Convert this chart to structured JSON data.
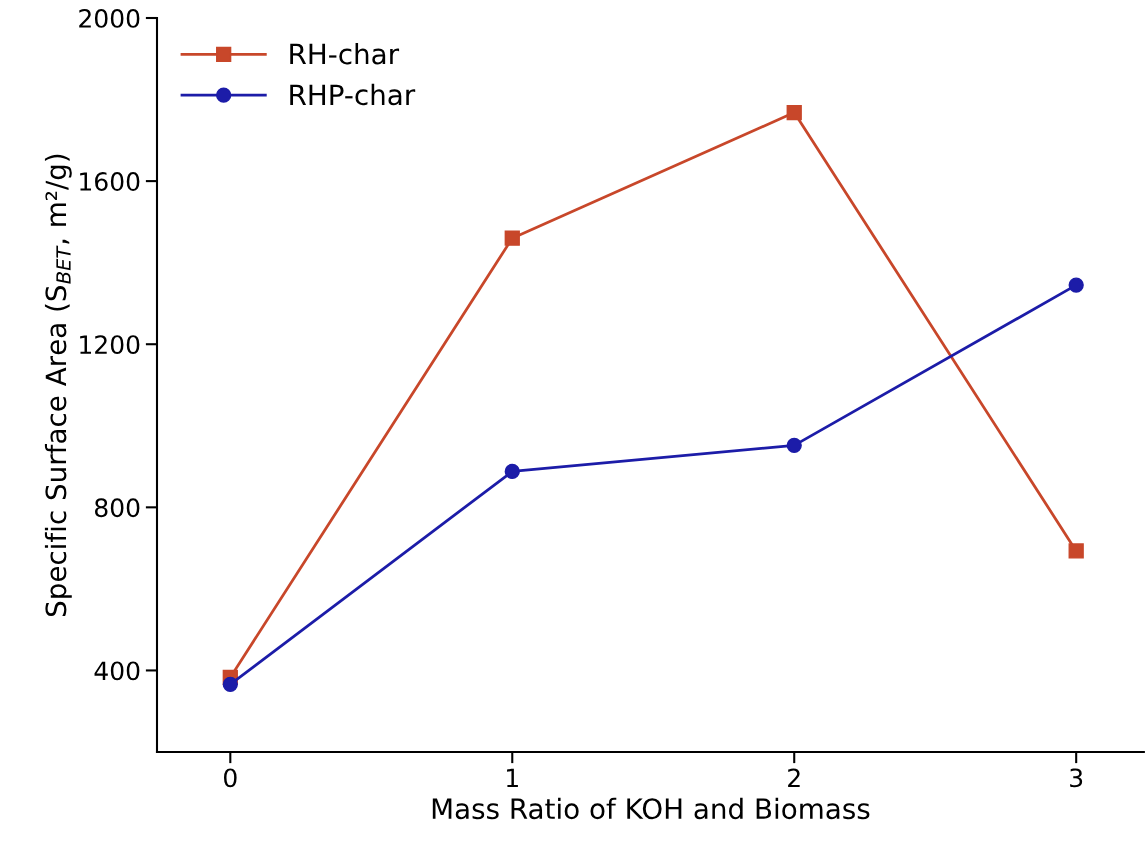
{
  "chart_data": {
    "type": "line",
    "xlabel": "Mass Ratio of KOH and Biomass",
    "ylabel": "Specific Surface Area (S$_{BET}$, m²/g)",
    "x": [
      0,
      1,
      2,
      3
    ],
    "series": [
      {
        "name": "RH-char",
        "color": "#c8472a",
        "values": [
          383,
          1460,
          1768,
          693
        ],
        "marker": "square"
      },
      {
        "name": "RHP-char",
        "color": "#1c1ca8",
        "values": [
          366,
          888,
          952,
          1345
        ],
        "marker": "circle"
      }
    ],
    "xlim": [
      -0.26,
      3.24
    ],
    "ylim": [
      200,
      2000
    ],
    "xticks": [
      0,
      1,
      2,
      3
    ],
    "yticks": [
      400,
      800,
      1200,
      1600,
      2000
    ],
    "grid": false,
    "legend": "top left",
    "line_style": "solid"
  }
}
